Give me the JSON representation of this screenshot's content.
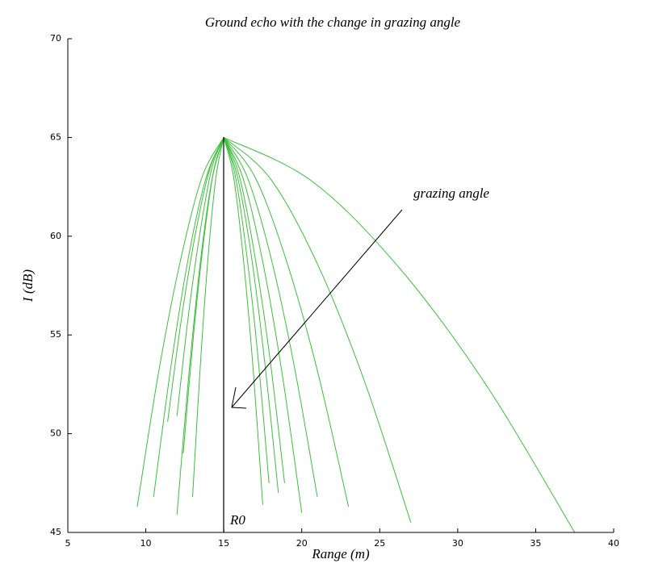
{
  "chart_data": {
    "type": "line",
    "title": "Ground echo with the change in grazing angle",
    "x_label": "Range (m)",
    "y_label": "I (dB)",
    "annotations": [
      "grazing angle",
      "R0"
    ],
    "xlim": [
      5,
      40
    ],
    "xticks": [
      5,
      10,
      15,
      20,
      25,
      30,
      35,
      40
    ],
    "ylim": [
      45,
      70
    ],
    "yticks": [
      45,
      50,
      55,
      60,
      65,
      70
    ],
    "grid": false,
    "series": [
      {
        "color": "#3cbf3c",
        "x": [
          15,
          13.61,
          12.23,
          10.84,
          9.45
        ],
        "values": [
          65,
          63.0,
          58.8,
          53.2,
          46.3
        ]
      },
      {
        "color": "#3cbf3c",
        "x": [
          15,
          13.88,
          12.75,
          11.63,
          10.5
        ],
        "values": [
          65,
          63.0,
          59.0,
          53.5,
          46.8
        ]
      },
      {
        "color": "#3cbf3c",
        "x": [
          15,
          14.1,
          13.2,
          12.3,
          11.4
        ],
        "values": [
          65,
          63.4,
          60.2,
          55.9,
          50.6
        ]
      },
      {
        "color": "#3cbf3c",
        "x": [
          15,
          14.25,
          13.5,
          12.75,
          12.0
        ],
        "values": [
          65,
          62.9,
          58.7,
          52.9,
          45.9
        ]
      },
      {
        "color": "#3cbf3c",
        "x": [
          15,
          14.25,
          13.5,
          12.75,
          12.0
        ],
        "values": [
          65,
          63.5,
          60.3,
          56.1,
          50.9
        ]
      },
      {
        "color": "#3cbf3c",
        "x": [
          15,
          14.35,
          13.7,
          13.05,
          12.4
        ],
        "values": [
          65,
          63.3,
          59.7,
          54.9,
          49.0
        ]
      },
      {
        "color": "#3cbf3c",
        "x": [
          15,
          14.5,
          14.0,
          13.5,
          13.0
        ],
        "values": [
          65,
          63.0,
          59.0,
          53.5,
          46.8
        ]
      },
      {
        "color": "#3cbf3c",
        "x": [
          15,
          15.63,
          16.25,
          16.88,
          17.5
        ],
        "values": [
          65,
          63.0,
          58.9,
          53.3,
          46.4
        ]
      },
      {
        "color": "#3cbf3c",
        "x": [
          15,
          15.73,
          16.45,
          17.18,
          17.9
        ],
        "values": [
          65,
          63.1,
          59.2,
          54.0,
          47.5
        ]
      },
      {
        "color": "#3cbf3c",
        "x": [
          15,
          15.88,
          16.75,
          17.63,
          18.5
        ],
        "values": [
          65,
          63.0,
          59.1,
          53.6,
          47.0
        ]
      },
      {
        "color": "#3cbf3c",
        "x": [
          15,
          15.98,
          16.95,
          17.93,
          18.9
        ],
        "values": [
          65,
          63.1,
          59.2,
          54.0,
          47.5
        ]
      },
      {
        "color": "#3cbf3c",
        "x": [
          15,
          16.25,
          17.5,
          18.75,
          20.0
        ],
        "values": [
          65,
          62.9,
          58.7,
          53.0,
          46.0
        ]
      },
      {
        "color": "#3cbf3c",
        "x": [
          15,
          16.5,
          18.0,
          19.5,
          21.0
        ],
        "values": [
          65,
          63.0,
          59.0,
          53.5,
          46.8
        ]
      },
      {
        "color": "#3cbf3c",
        "x": [
          15,
          17.0,
          19.0,
          21.0,
          23.0
        ],
        "values": [
          65,
          63.0,
          58.8,
          53.2,
          46.3
        ]
      },
      {
        "color": "#3cbf3c",
        "x": [
          15,
          18.0,
          21.0,
          24.0,
          27.0
        ],
        "values": [
          65,
          62.9,
          58.6,
          52.7,
          45.5
        ]
      },
      {
        "color": "#3cbf3c",
        "x": [
          15,
          20.63,
          26.25,
          31.88,
          37.5
        ],
        "values": [
          65,
          62.8,
          58.4,
          52.4,
          45.0
        ]
      }
    ]
  }
}
